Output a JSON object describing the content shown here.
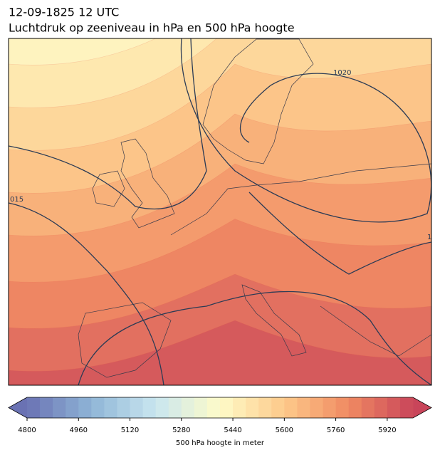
{
  "header": {
    "title": "12-09-1825 12 UTC",
    "subtitle": "Luchtdruk op zeeniveau in hPa en 500 hPa hoogte"
  },
  "map": {
    "isobar_labels": [
      "1020",
      "015",
      "1"
    ]
  },
  "colorbar": {
    "label": "500 hPa hoogte in meter",
    "lim": [
      4800,
      6000
    ],
    "step": 40,
    "ticks": [
      4800,
      4960,
      5120,
      5280,
      5440,
      5600,
      5760,
      5920
    ],
    "colormap": [
      "#6a72b3",
      "#8fb5d6",
      "#c9e6f0",
      "#fefbc8",
      "#fdc98a",
      "#f08a62",
      "#c9455a"
    ]
  }
}
